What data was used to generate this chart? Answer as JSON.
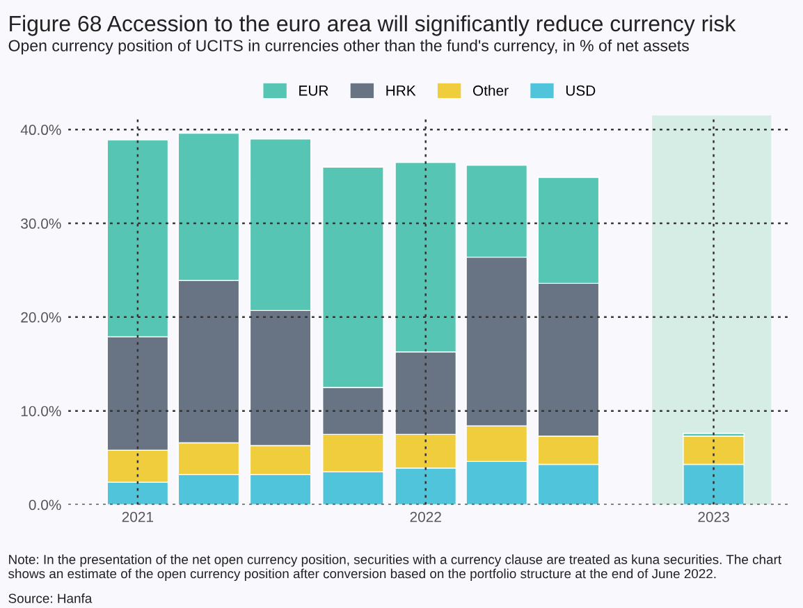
{
  "chart_data": {
    "type": "bar",
    "stacked": true,
    "title": "Figure 68 Accession to the euro area will significantly reduce currency risk",
    "subtitle": "Open currency position of UCITS in currencies other than the fund's currency, in % of net assets",
    "x": [
      "2021-01-01",
      "2021-04-01",
      "2021-07-01",
      "2021-10-01",
      "2022-01-01",
      "2022-04-01",
      "2022-07-01",
      "2023-01-01"
    ],
    "series": [
      {
        "name": "USD",
        "color": "#50c4da",
        "values": [
          2.4,
          3.2,
          3.2,
          3.5,
          3.9,
          4.6,
          4.3,
          4.3
        ]
      },
      {
        "name": "Other",
        "color": "#f0cd3c",
        "values": [
          3.4,
          3.4,
          3.1,
          4.0,
          3.6,
          3.8,
          3.0,
          3.0
        ]
      },
      {
        "name": "HRK",
        "color": "#687384",
        "values": [
          12.1,
          17.3,
          14.4,
          5.0,
          8.8,
          18.0,
          16.3,
          0
        ]
      },
      {
        "name": "EUR",
        "color": "#56c5b4",
        "values": [
          21.0,
          15.7,
          18.3,
          23.5,
          20.2,
          9.8,
          11.3,
          0.3
        ]
      }
    ],
    "xlim": [
      "2020-10-05",
      "2023-04-09"
    ],
    "xticks": [
      {
        "value": "2021-01-01",
        "label": "2021"
      },
      {
        "value": "2022-01-01",
        "label": "2022"
      },
      {
        "value": "2023-01-01",
        "label": "2023"
      }
    ],
    "ylim": [
      0,
      41.5
    ],
    "yticks": [
      {
        "value": 0,
        "label": "0.0%"
      },
      {
        "value": 10,
        "label": "10.0%"
      },
      {
        "value": 20,
        "label": "20.0%"
      },
      {
        "value": 30,
        "label": "30.0%"
      },
      {
        "value": 40,
        "label": "40.0%"
      }
    ],
    "bands": [
      {
        "axis": "x",
        "from": "2022-10-15",
        "to": "2023-03-15",
        "color": "#d6ede6"
      }
    ],
    "grid": true,
    "legend": "top",
    "annotations": [
      "Note: In the presentation of the net open currency position, securities with a currency clause are treated as kuna securities. The chart shows an estimate of the open currency position after conversion based on the portfolio structure at the end of June 2022.",
      "Source: Hanfa"
    ]
  }
}
